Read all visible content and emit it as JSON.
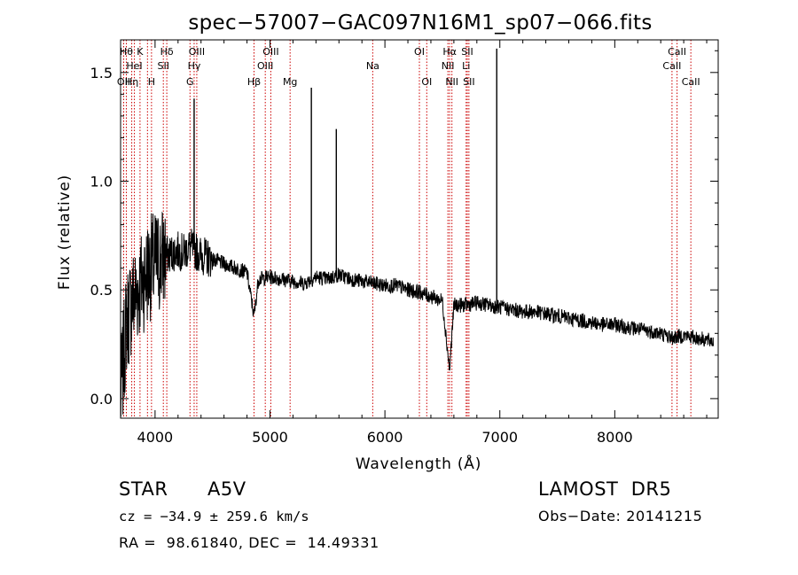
{
  "chart_data": {
    "type": "line",
    "title": "spec−57007−GAC097N16M1_sp07−066.fits",
    "xlabel": "Wavelength (Å)",
    "ylabel": "Flux (relative)",
    "xlim": [
      3700,
      8900
    ],
    "ylim": [
      -0.09,
      1.65
    ],
    "xticks": [
      4000,
      5000,
      6000,
      7000,
      8000
    ],
    "yticks": [
      0.0,
      0.5,
      1.0,
      1.5
    ],
    "ytick_labels": [
      "0.0",
      "0.5",
      "1.0",
      "1.5"
    ],
    "grid": false,
    "series": [
      {
        "x": [
          3700,
          3750,
          3800,
          3850,
          3900,
          3950,
          4000,
          4050,
          4100,
          4150,
          4200,
          4250,
          4300,
          4350,
          4400,
          4450,
          4500,
          4600,
          4700,
          4800,
          4861,
          4900,
          5000,
          5100,
          5200,
          5300,
          5400,
          5500,
          5600,
          5700,
          5800,
          5900,
          6000,
          6100,
          6200,
          6300,
          6400,
          6500,
          6563,
          6600,
          6700,
          6800,
          6900,
          7000,
          7100,
          7200,
          7300,
          7400,
          7500,
          7600,
          7700,
          7800,
          7900,
          8000,
          8100,
          8200,
          8300,
          8400,
          8500,
          8600,
          8700,
          8800,
          8860
        ],
        "y": [
          0.0,
          0.35,
          0.45,
          0.5,
          0.55,
          0.6,
          0.62,
          0.64,
          0.66,
          0.67,
          0.68,
          0.67,
          0.7,
          0.68,
          0.66,
          0.65,
          0.64,
          0.62,
          0.6,
          0.58,
          0.38,
          0.55,
          0.56,
          0.55,
          0.54,
          0.53,
          0.56,
          0.55,
          0.57,
          0.55,
          0.54,
          0.53,
          0.52,
          0.52,
          0.5,
          0.49,
          0.47,
          0.45,
          0.13,
          0.43,
          0.43,
          0.44,
          0.43,
          0.42,
          0.41,
          0.4,
          0.4,
          0.39,
          0.38,
          0.37,
          0.36,
          0.35,
          0.34,
          0.34,
          0.33,
          0.32,
          0.31,
          0.3,
          0.28,
          0.29,
          0.28,
          0.27,
          0.26
        ]
      }
    ],
    "spikes": [
      {
        "x": 4340,
        "y": 1.38
      },
      {
        "x": 5360,
        "y": 1.43
      },
      {
        "x": 5577,
        "y": 1.24
      },
      {
        "x": 6973,
        "y": 1.61
      }
    ],
    "lines": [
      {
        "x": 3727,
        "label": "OII",
        "row": 3
      },
      {
        "x": 3750,
        "label": "Hθ",
        "row": 1
      },
      {
        "x": 3797,
        "label": "Hη",
        "row": 3
      },
      {
        "x": 3820,
        "label": "HeI",
        "row": 2
      },
      {
        "x": 3869,
        "label": "K",
        "row": 1
      },
      {
        "x": 3934,
        "label": "",
        "row": 0
      },
      {
        "x": 3969,
        "label": "H",
        "row": 3
      },
      {
        "x": 4072,
        "label": "SII",
        "row": 2
      },
      {
        "x": 4102,
        "label": "Hδ",
        "row": 1
      },
      {
        "x": 4304,
        "label": "G",
        "row": 3
      },
      {
        "x": 4340,
        "label": "Hγ",
        "row": 2
      },
      {
        "x": 4363,
        "label": "OIII",
        "row": 1
      },
      {
        "x": 4861,
        "label": "Hβ",
        "row": 3
      },
      {
        "x": 4959,
        "label": "OIII",
        "row": 2
      },
      {
        "x": 5007,
        "label": "OIII",
        "row": 1
      },
      {
        "x": 5175,
        "label": "Mg",
        "row": 3
      },
      {
        "x": 5894,
        "label": "Na",
        "row": 2
      },
      {
        "x": 6300,
        "label": "OI",
        "row": 1
      },
      {
        "x": 6364,
        "label": "OI",
        "row": 3
      },
      {
        "x": 6548,
        "label": "NII",
        "row": 2
      },
      {
        "x": 6563,
        "label": "Hα",
        "row": 1
      },
      {
        "x": 6583,
        "label": "NII",
        "row": 3
      },
      {
        "x": 6707,
        "label": "Li",
        "row": 2
      },
      {
        "x": 6717,
        "label": "SII",
        "row": 1
      },
      {
        "x": 6731,
        "label": "SII",
        "row": 3
      },
      {
        "x": 8498,
        "label": "CaII",
        "row": 2
      },
      {
        "x": 8542,
        "label": "CaII",
        "row": 1
      },
      {
        "x": 8662,
        "label": "CaII",
        "row": 3
      }
    ],
    "colors": {
      "spectrum": "#000000",
      "line_markers": "#cc0000"
    }
  },
  "info": {
    "object_class": "STAR",
    "subclass": "A5V",
    "survey": "LAMOST  DR5",
    "redshift": "cz = −34.9 ± 259.6 km/s",
    "obs_date": "Obs−Date: 20141215",
    "coords": "RA =  98.61840, DEC =  14.49331"
  }
}
